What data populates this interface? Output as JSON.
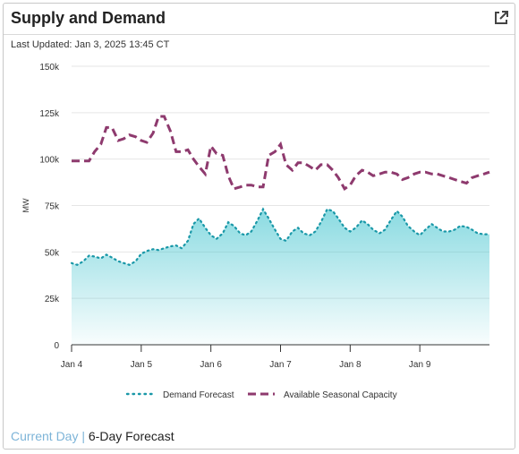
{
  "header": {
    "title": "Supply and Demand",
    "external_link_icon": "external-link-icon"
  },
  "last_updated": "Last Updated: Jan 3, 2025 13:45 CT",
  "footer": {
    "tab_current": "Current Day",
    "separator": "|",
    "tab_forecast": "6-Day Forecast"
  },
  "colors": {
    "demand": "#2bbdc9",
    "capacity": "#8e3a6e",
    "grid": "#e6e6e6",
    "axis": "#333333",
    "accent": "#7db4d8"
  },
  "chart_data": {
    "type": "area",
    "ylabel": "MW",
    "ylim": [
      0,
      150000
    ],
    "yticks": [
      0,
      25000,
      50000,
      75000,
      100000,
      125000,
      150000
    ],
    "ytick_labels": [
      "0",
      "25k",
      "50k",
      "75k",
      "100k",
      "125k",
      "150k"
    ],
    "xlim": [
      0,
      6
    ],
    "xticks": [
      0,
      1,
      2,
      3,
      4,
      5
    ],
    "xtick_labels": [
      "Jan 4",
      "Jan 5",
      "Jan 6",
      "Jan 7",
      "Jan 8",
      "Jan 9"
    ],
    "grid": true,
    "legend_position": "bottom",
    "series": [
      {
        "name": "Demand Forecast",
        "style": "dotted-area",
        "x": [
          0,
          0.08,
          0.17,
          0.25,
          0.33,
          0.42,
          0.5,
          0.58,
          0.67,
          0.75,
          0.83,
          0.92,
          1.0,
          1.08,
          1.17,
          1.25,
          1.33,
          1.42,
          1.5,
          1.58,
          1.67,
          1.75,
          1.83,
          1.92,
          2.0,
          2.08,
          2.17,
          2.25,
          2.33,
          2.42,
          2.5,
          2.58,
          2.67,
          2.75,
          2.83,
          2.92,
          3.0,
          3.08,
          3.17,
          3.25,
          3.33,
          3.42,
          3.5,
          3.58,
          3.67,
          3.75,
          3.83,
          3.92,
          4.0,
          4.08,
          4.17,
          4.25,
          4.33,
          4.42,
          4.5,
          4.58,
          4.67,
          4.75,
          4.83,
          4.92,
          5.0,
          5.08,
          5.17,
          5.25,
          5.33,
          5.42,
          5.5,
          5.58,
          5.67,
          5.75,
          5.83,
          5.92,
          6.0
        ],
        "values": [
          44000,
          43000,
          45000,
          48000,
          47500,
          46500,
          48500,
          47000,
          45000,
          44000,
          43000,
          45000,
          49000,
          50500,
          51500,
          51000,
          52000,
          53000,
          53500,
          52000,
          56000,
          65000,
          68000,
          63000,
          59000,
          57000,
          60000,
          66000,
          64000,
          60000,
          59000,
          61000,
          67000,
          73000,
          68000,
          62000,
          57000,
          56000,
          61000,
          63000,
          60000,
          59000,
          61000,
          66000,
          73000,
          72000,
          68000,
          63000,
          61000,
          63000,
          67000,
          65000,
          62000,
          60000,
          62000,
          67000,
          72000,
          69000,
          64000,
          61000,
          59000,
          62000,
          65000,
          63000,
          61000,
          61000,
          62000,
          64000,
          63500,
          62000,
          60000,
          59500,
          59500
        ]
      },
      {
        "name": "Available Seasonal Capacity",
        "style": "dashed-line",
        "x": [
          0,
          0.17,
          0.25,
          0.33,
          0.42,
          0.5,
          0.58,
          0.67,
          0.75,
          0.83,
          0.92,
          1.0,
          1.08,
          1.17,
          1.25,
          1.33,
          1.42,
          1.5,
          1.58,
          1.67,
          1.75,
          1.83,
          1.92,
          2.0,
          2.08,
          2.17,
          2.25,
          2.33,
          2.42,
          2.5,
          2.58,
          2.67,
          2.75,
          2.83,
          2.92,
          3.0,
          3.08,
          3.17,
          3.25,
          3.33,
          3.42,
          3.5,
          3.58,
          3.67,
          3.75,
          3.83,
          3.92,
          4.0,
          4.08,
          4.17,
          4.25,
          4.33,
          4.42,
          4.5,
          4.58,
          4.67,
          4.75,
          4.83,
          4.92,
          5.0,
          5.08,
          5.17,
          5.25,
          5.33,
          5.42,
          5.5,
          5.58,
          5.67,
          5.75,
          5.83,
          5.92,
          6.0
        ],
        "values": [
          99000,
          99000,
          99000,
          104000,
          108000,
          117000,
          117000,
          110000,
          111000,
          113000,
          112000,
          110000,
          109000,
          114000,
          123000,
          123000,
          115000,
          104000,
          104000,
          105000,
          100000,
          96000,
          92000,
          107000,
          103000,
          102000,
          91000,
          84000,
          85000,
          86000,
          86000,
          85000,
          85000,
          102000,
          104000,
          108000,
          97000,
          94000,
          98000,
          98000,
          96000,
          94000,
          97000,
          97000,
          94000,
          90000,
          84000,
          86000,
          91000,
          94000,
          93000,
          91000,
          92000,
          93000,
          93000,
          92000,
          89000,
          90000,
          92000,
          93000,
          93000,
          92000,
          92000,
          91000,
          90000,
          89000,
          88000,
          87000,
          90000,
          91000,
          92000,
          93000
        ]
      }
    ]
  }
}
